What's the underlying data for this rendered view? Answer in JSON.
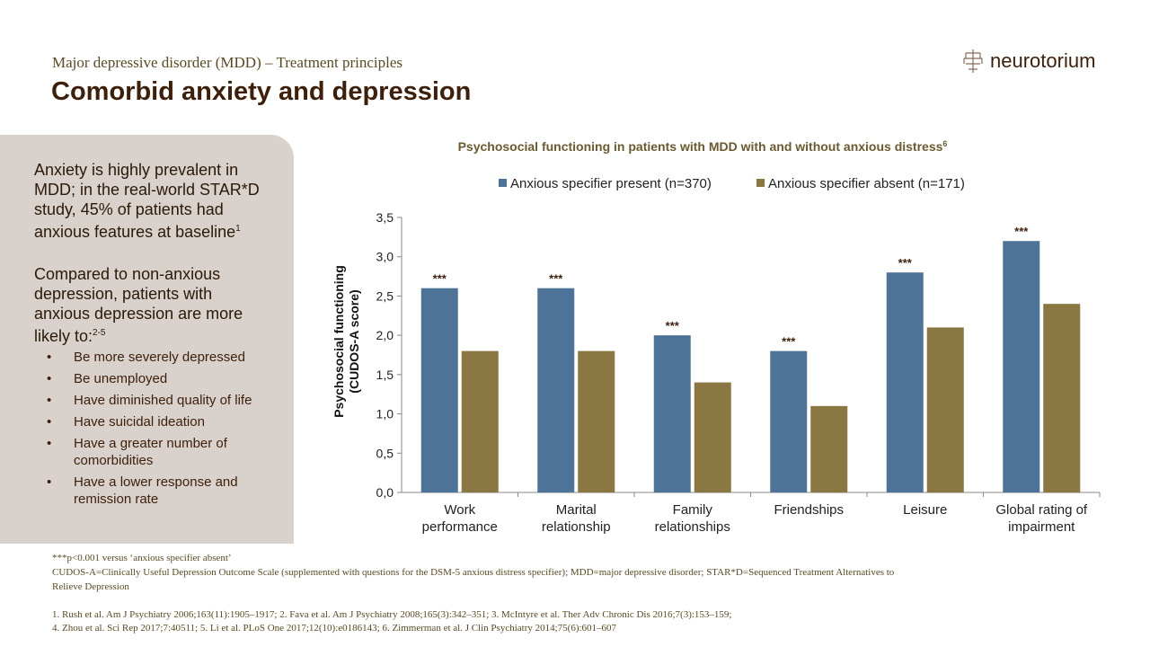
{
  "header": {
    "subtitle": "Major depressive disorder (MDD) – Treatment principles",
    "title": "Comorbid anxiety and depression",
    "logo": "neurotorium"
  },
  "panel": {
    "para1": "Anxiety is highly prevalent in MDD; in the real-world STAR*D study, 45% of patients had anxious features at baseline",
    "para1_sup": "1",
    "para2": "Compared to non-anxious depression, patients with anxious depression are more likely to:",
    "para2_sup": "2-5",
    "bullets": [
      "Be more severely depressed",
      "Be unemployed",
      "Have diminished quality of life",
      "Have suicidal ideation",
      "Have a greater number of comorbidities",
      "Have a lower response and remission rate"
    ]
  },
  "footnotes": {
    "sig": "***p<0.001 versus ‘anxious specifier absent’",
    "abbr": "CUDOS-A=Clinically Useful Depression Outcome Scale (supplemented with questions for the DSM-5 anxious distress specifier); MDD=major depressive disorder; STAR*D=Sequenced Treatment Alternatives to Relieve Depression",
    "refs1": "1. Rush et al. Am J Psychiatry 2006;163(11):1905–1917; 2. Fava et al. Am J Psychiatry 2008;165(3):342–351; 3. McIntyre et al. Ther Adv Chronic Dis 2016;7(3):153–159;",
    "refs2": "4. Zhou et al. Sci Rep 2017;7:40511; 5. Li et al. PLoS One 2017;12(10):e0186143; 6. Zimmerman et al. J Clin Psychiatry 2014;75(6):601–607"
  },
  "chart_data": {
    "type": "bar",
    "title": "Psychosocial functioning in patients with MDD with and without anxious distress",
    "title_sup": "6",
    "ylabel": "Psychosocial functioning (CUDOS-A score)",
    "ylim": [
      0,
      3.5
    ],
    "yticks": [
      "0,0",
      "0,5",
      "1,0",
      "1,5",
      "2,0",
      "2,5",
      "3,0",
      "3,5"
    ],
    "legend": "top",
    "categories": [
      [
        "Work",
        "performance"
      ],
      [
        "Marital",
        "relationship"
      ],
      [
        "Family",
        "relationships"
      ],
      [
        "Friendships"
      ],
      [
        "Leisure"
      ],
      [
        "Global rating of",
        "impairment"
      ]
    ],
    "series": [
      {
        "name": "Anxious specifier present (n=370)",
        "color": "#4e7398",
        "values": [
          2.6,
          2.6,
          2.0,
          1.8,
          2.8,
          3.2
        ]
      },
      {
        "name": "Anxious specifier absent (n=171)",
        "color": "#8b7742",
        "values": [
          1.8,
          1.8,
          1.4,
          1.1,
          2.1,
          2.4
        ]
      }
    ],
    "annotations": [
      "***",
      "***",
      "***",
      "***",
      "***",
      "***"
    ]
  }
}
